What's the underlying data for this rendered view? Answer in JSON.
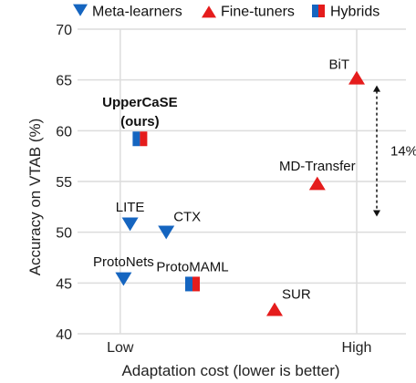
{
  "chart_data": {
    "type": "scatter",
    "xlabel": "Adaptation cost (lower is better)",
    "ylabel": "Accuracy on VTAB (%)",
    "xlim": [
      0,
      10
    ],
    "ylim": [
      40,
      70
    ],
    "yticks": [
      40,
      45,
      50,
      55,
      60,
      65,
      70
    ],
    "xticks": [
      {
        "value": 1.3,
        "label": "Low"
      },
      {
        "value": 8.5,
        "label": "High"
      }
    ],
    "grid": true,
    "legend_position": "top",
    "legend": [
      {
        "name": "Meta-learners",
        "marker": "triangle-down"
      },
      {
        "name": "Fine-tuners",
        "marker": "triangle-up"
      },
      {
        "name": "Hybrids",
        "marker": "split-square"
      }
    ],
    "colors": {
      "meta": "#1565c0",
      "fine": "#e51c1c",
      "hybrid_left": "#1565c0",
      "hybrid_right": "#e51c1c",
      "grid": "#dcdcdc"
    },
    "points": [
      {
        "label": "UpperCaSE\n(ours)",
        "group": "hybrid",
        "x": 1.9,
        "y": 59.2,
        "label_pos": "above",
        "bold": true
      },
      {
        "label": "ProtoMAML",
        "group": "hybrid",
        "x": 3.5,
        "y": 44.9,
        "label_pos": "above"
      },
      {
        "label": "LITE",
        "group": "meta",
        "x": 1.6,
        "y": 50.8,
        "label_pos": "above"
      },
      {
        "label": "CTX",
        "group": "meta",
        "x": 2.7,
        "y": 50.0,
        "label_pos": "above-right"
      },
      {
        "label": "ProtoNets",
        "group": "meta",
        "x": 1.4,
        "y": 45.4,
        "label_pos": "above"
      },
      {
        "label": "BiT",
        "group": "fine",
        "x": 8.5,
        "y": 65.2,
        "label_pos": "above-left"
      },
      {
        "label": "MD-Transfer",
        "group": "fine",
        "x": 7.3,
        "y": 54.8,
        "label_pos": "above"
      },
      {
        "label": "SUR",
        "group": "fine",
        "x": 6.0,
        "y": 42.4,
        "label_pos": "above-right"
      }
    ],
    "annotation": {
      "text": "14%",
      "from_y": 51,
      "to_y": 65
    }
  }
}
